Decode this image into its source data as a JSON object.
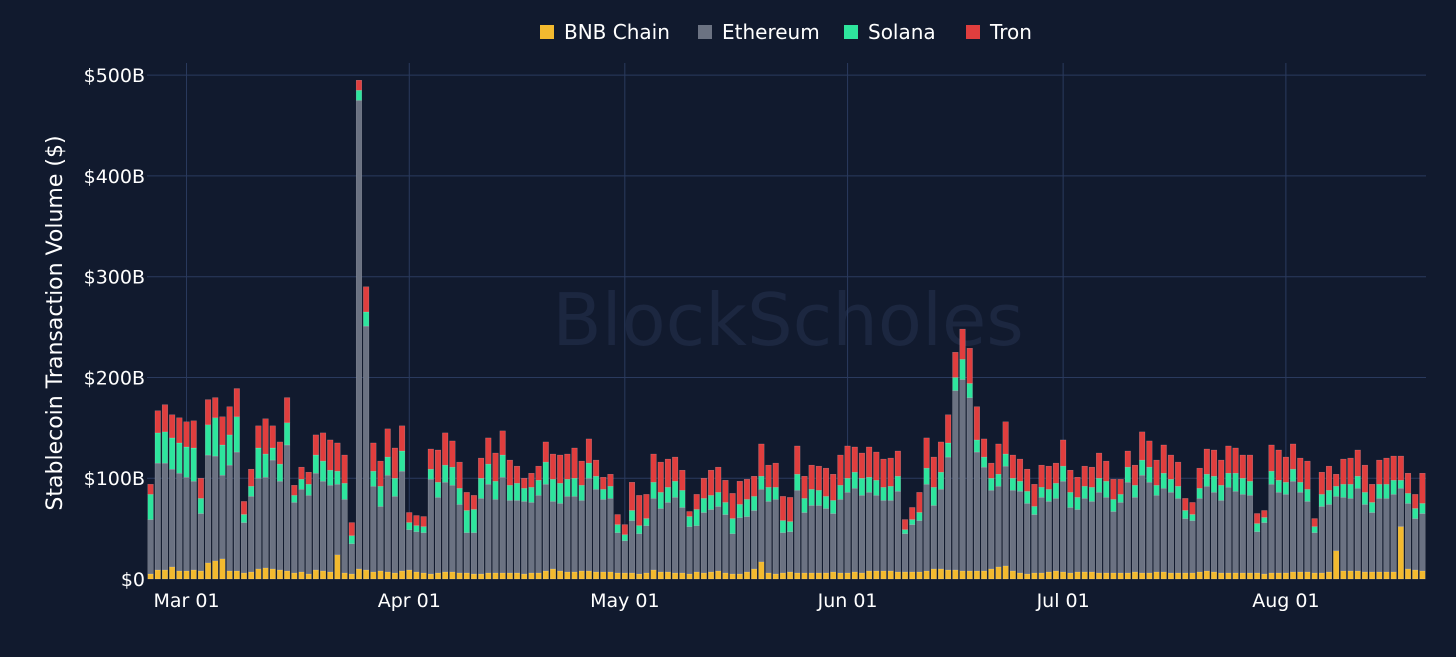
{
  "watermark": "BlockScholes",
  "colors": {
    "background": "#111a2e",
    "grid": "#2a3a5e",
    "text": "#ffffff",
    "watermark": "#1c2740"
  },
  "chart_data": {
    "type": "bar",
    "stacked": true,
    "x_type": "date",
    "start_date": "2025-02-24",
    "end_date": "2025-08-20",
    "xticks": [
      {
        "date": "2025-03-01",
        "label": "Mar 01"
      },
      {
        "date": "2025-04-01",
        "label": "Apr 01"
      },
      {
        "date": "2025-05-01",
        "label": "May 01"
      },
      {
        "date": "2025-06-01",
        "label": "Jun 01"
      },
      {
        "date": "2025-07-01",
        "label": "Jul 01"
      },
      {
        "date": "2025-08-01",
        "label": "Aug 01"
      }
    ],
    "ylabel": "Stablecoin Transaction Volume ($)",
    "ylim": [
      0,
      520
    ],
    "yticks": [
      {
        "value": 0,
        "label": "$0"
      },
      {
        "value": 100,
        "label": "$100B"
      },
      {
        "value": 200,
        "label": "$200B"
      },
      {
        "value": 300,
        "label": "$300B"
      },
      {
        "value": 400,
        "label": "$400B"
      },
      {
        "value": 500,
        "label": "$500B"
      }
    ],
    "grid": true,
    "legend_position": "top-center",
    "series": [
      {
        "name": "BNB Chain",
        "color": "#f3ba2f",
        "values": [
          5,
          9,
          9,
          12,
          8,
          8,
          9,
          8,
          16,
          18,
          20,
          8,
          8,
          6,
          7,
          10,
          11,
          10,
          9,
          8,
          6,
          7,
          5,
          9,
          8,
          7,
          24,
          6,
          5,
          10,
          9,
          7,
          8,
          7,
          6,
          8,
          9,
          7,
          6,
          5,
          6,
          7,
          7,
          6,
          6,
          5,
          5,
          6,
          6,
          6,
          6,
          6,
          5,
          6,
          6,
          8,
          10,
          8,
          7,
          7,
          8,
          8,
          7,
          7,
          7,
          6,
          6,
          6,
          5,
          6,
          9,
          7,
          7,
          6,
          6,
          5,
          7,
          6,
          7,
          8,
          6,
          5,
          5,
          7,
          10,
          17,
          6,
          5,
          6,
          7,
          6,
          6,
          6,
          6,
          6,
          7,
          6,
          6,
          7,
          6,
          8,
          8,
          8,
          8,
          7,
          7,
          7,
          7,
          8,
          10,
          10,
          9,
          9,
          8,
          8,
          8,
          8,
          10,
          12,
          13,
          8,
          6,
          5,
          6,
          6,
          7,
          8,
          7,
          6,
          7,
          7,
          7,
          6,
          6,
          6,
          6,
          6,
          7,
          6,
          6,
          7,
          7,
          6,
          6,
          6,
          6,
          7,
          8,
          7,
          6,
          6,
          6,
          6,
          6,
          6,
          5,
          6,
          6,
          6,
          7,
          7,
          7,
          6,
          6,
          7,
          28,
          8,
          8,
          8,
          7,
          7,
          7,
          7,
          7,
          52,
          10,
          9,
          8,
          8,
          7,
          6,
          6,
          6,
          6,
          6,
          6,
          6,
          6,
          7,
          8
        ]
      },
      {
        "name": "Ethereum",
        "color": "#6b7282",
        "values": [
          54,
          106,
          106,
          97,
          97,
          93,
          88,
          57,
          107,
          104,
          83,
          105,
          118,
          50,
          75,
          90,
          90,
          108,
          88,
          125,
          70,
          82,
          78,
          96,
          89,
          86,
          70,
          73,
          30,
          465,
          242,
          85,
          64,
          96,
          76,
          99,
          40,
          40,
          40,
          94,
          75,
          89,
          86,
          68,
          40,
          41,
          75,
          88,
          73,
          95,
          72,
          72,
          72,
          70,
          77,
          86,
          67,
          67,
          75,
          75,
          70,
          92,
          82,
          72,
          73,
          40,
          32,
          52,
          40,
          47,
          71,
          63,
          69,
          75,
          65,
          47,
          46,
          60,
          62,
          64,
          58,
          40,
          56,
          55,
          58,
          72,
          71,
          74,
          40,
          40,
          82,
          60,
          67,
          67,
          64,
          58,
          73,
          80,
          83,
          77,
          78,
          75,
          70,
          70,
          80,
          38,
          47,
          51,
          86,
          63,
          79,
          112,
          178,
          190,
          172,
          118,
          103,
          78,
          80,
          99,
          80,
          81,
          70,
          58,
          75,
          70,
          72,
          90,
          65,
          62,
          73,
          70,
          80,
          75,
          61,
          70,
          90,
          74,
          97,
          90,
          76,
          83,
          80,
          74,
          54,
          52,
          73,
          84,
          79,
          72,
          85,
          81,
          78,
          77,
          41,
          51,
          88,
          80,
          78,
          90,
          79,
          70,
          40,
          66,
          67,
          54,
          73,
          72,
          82,
          67,
          59,
          73,
          73,
          77,
          38,
          65,
          51,
          57,
          57,
          65,
          47,
          45,
          66,
          58,
          55,
          52,
          56,
          54,
          59,
          78
        ]
      },
      {
        "name": "Solana",
        "color": "#2ee59d",
        "values": [
          25,
          30,
          31,
          31,
          30,
          30,
          33,
          15,
          30,
          38,
          30,
          30,
          35,
          8,
          10,
          30,
          23,
          12,
          17,
          22,
          7,
          10,
          11,
          18,
          20,
          15,
          13,
          16,
          8,
          10,
          14,
          15,
          20,
          18,
          18,
          20,
          7,
          6,
          6,
          10,
          15,
          17,
          18,
          16,
          22,
          23,
          20,
          20,
          18,
          22,
          15,
          17,
          13,
          15,
          15,
          22,
          22,
          20,
          17,
          18,
          15,
          15,
          13,
          10,
          12,
          8,
          6,
          10,
          8,
          7,
          16,
          16,
          15,
          16,
          17,
          10,
          16,
          14,
          14,
          14,
          12,
          15,
          13,
          17,
          14,
          13,
          14,
          12,
          12,
          10,
          16,
          14,
          16,
          15,
          12,
          13,
          14,
          14,
          16,
          17,
          15,
          15,
          13,
          14,
          15,
          4,
          5,
          8,
          16,
          18,
          17,
          14,
          13,
          20,
          14,
          12,
          10,
          12,
          12,
          12,
          12,
          10,
          12,
          8,
          10,
          12,
          15,
          15,
          15,
          12,
          12,
          14,
          14,
          16,
          12,
          8,
          15,
          12,
          15,
          15,
          10,
          15,
          13,
          12,
          8,
          6,
          10,
          12,
          16,
          15,
          14,
          18,
          16,
          14,
          8,
          5,
          13,
          12,
          12,
          12,
          10,
          12,
          6,
          12,
          14,
          10,
          13,
          14,
          12,
          12,
          10,
          14,
          14,
          14,
          8,
          10,
          10,
          10,
          8,
          8,
          8,
          8,
          10,
          10,
          10,
          10,
          10,
          10,
          10,
          16
        ]
      },
      {
        "name": "Tron",
        "color": "#e03e3e",
        "values": [
          10,
          22,
          27,
          23,
          25,
          25,
          27,
          20,
          25,
          20,
          28,
          28,
          28,
          13,
          17,
          22,
          35,
          22,
          22,
          25,
          10,
          12,
          12,
          20,
          28,
          30,
          28,
          28,
          13,
          10,
          25,
          28,
          25,
          28,
          30,
          25,
          10,
          10,
          10,
          20,
          32,
          32,
          26,
          26,
          18,
          14,
          20,
          26,
          28,
          24,
          25,
          17,
          10,
          14,
          14,
          20,
          25,
          28,
          25,
          30,
          24,
          24,
          16,
          12,
          12,
          10,
          10,
          28,
          30,
          24,
          28,
          30,
          28,
          24,
          20,
          5,
          15,
          20,
          25,
          25,
          22,
          25,
          23,
          20,
          20,
          32,
          22,
          24,
          24,
          24,
          28,
          22,
          24,
          24,
          28,
          26,
          30,
          32,
          25,
          25,
          30,
          28,
          28,
          28,
          25,
          10,
          12,
          20,
          30,
          30,
          30,
          28,
          25,
          30,
          35,
          33,
          18,
          15,
          30,
          32,
          23,
          22,
          22,
          22,
          22,
          23,
          20,
          26,
          22,
          20,
          20,
          20,
          25,
          20,
          20,
          15,
          16,
          20,
          28,
          26,
          25,
          28,
          24,
          24,
          12,
          12,
          20,
          25,
          26,
          25,
          27,
          25,
          23,
          26,
          10,
          7,
          26,
          30,
          25,
          25,
          24,
          28,
          8,
          22,
          24,
          12,
          25,
          26,
          26,
          27,
          18,
          24,
          26,
          24,
          24,
          20,
          14,
          30,
          35,
          25,
          12,
          10,
          20,
          25,
          22,
          25,
          28,
          27,
          22,
          30
        ]
      }
    ]
  }
}
